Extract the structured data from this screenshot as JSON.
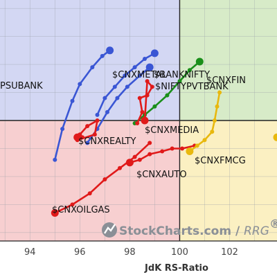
{
  "chart_data": {
    "type": "scatter",
    "xlabel": "JdK RS-Ratio",
    "ylabel": "",
    "xlim": [
      92.8,
      103.9
    ],
    "ylim": [
      95.7,
      104.3
    ],
    "x_ticks": [
      94,
      96,
      98,
      100,
      102
    ],
    "center": [
      100,
      100
    ],
    "grid": true,
    "quadrants": {
      "leading": "#d7ebc8",
      "weakening": "#fbf0c2",
      "lagging": "#f7cfd0",
      "improving": "#d3d7f3"
    },
    "watermark": {
      "brand": "StockCharts.com",
      "separator": " / ",
      "product": "RRG",
      "mark": "®"
    },
    "series": [
      {
        "name": "$CNXMETAL",
        "color": "#3a56d4",
        "points": [
          [
            95.0,
            98.6
          ],
          [
            95.3,
            99.7
          ],
          [
            95.7,
            100.7
          ],
          [
            96.0,
            101.3
          ],
          [
            96.5,
            101.9
          ],
          [
            96.9,
            102.3
          ],
          [
            97.2,
            102.5
          ]
        ]
      },
      {
        "name": "$BANKNIFTY",
        "color": "#3a56d4",
        "points": [
          [
            96.7,
            100.2
          ],
          [
            97.0,
            100.8
          ],
          [
            97.4,
            101.2
          ],
          [
            97.8,
            101.6
          ],
          [
            98.2,
            101.9
          ],
          [
            98.6,
            102.2
          ],
          [
            99.0,
            102.4
          ]
        ]
      },
      {
        "name": "$NIFTYPVTBANK",
        "color": "#3a56d4",
        "points": [
          [
            96.3,
            99.2
          ],
          [
            96.7,
            99.7
          ],
          [
            97.1,
            100.3
          ],
          [
            97.5,
            100.8
          ],
          [
            97.9,
            101.2
          ],
          [
            98.4,
            101.6
          ],
          [
            98.8,
            101.9
          ]
        ]
      },
      {
        "name": "$CNXFIN",
        "color": "#1a8f1a",
        "points": [
          [
            98.2,
            99.9
          ],
          [
            98.6,
            100.2
          ],
          [
            99.0,
            100.5
          ],
          [
            99.5,
            100.9
          ],
          [
            100.0,
            101.4
          ],
          [
            100.4,
            101.8
          ],
          [
            100.8,
            102.1
          ]
        ]
      },
      {
        "name": "$CNXMEDIA",
        "color": "#e01a1a",
        "points": [
          [
            98.3,
            99.9
          ],
          [
            98.5,
            100.3
          ],
          [
            98.4,
            100.8
          ],
          [
            98.7,
            100.9
          ],
          [
            98.9,
            101.2
          ],
          [
            98.7,
            101.4
          ],
          [
            98.6,
            100.0
          ]
        ]
      },
      {
        "name": "$CNXREALTY",
        "color": "#e01a1a",
        "points": [
          [
            95.9,
            99.3
          ],
          [
            96.6,
            99.5
          ],
          [
            96.7,
            100.0
          ],
          [
            96.3,
            99.8
          ],
          [
            96.0,
            99.5
          ],
          [
            96.1,
            99.4
          ],
          [
            95.9,
            99.4
          ]
        ]
      },
      {
        "name": "$CNXAUTO",
        "color": "#e01a1a",
        "points": [
          [
            100.6,
            99.1
          ],
          [
            100.1,
            99.0
          ],
          [
            99.7,
            99.0
          ],
          [
            99.3,
            98.9
          ],
          [
            98.8,
            98.8
          ],
          [
            98.4,
            98.6
          ],
          [
            98.0,
            98.5
          ]
        ]
      },
      {
        "name": "$CNXOILGAS",
        "color": "#e01a1a",
        "points": [
          [
            98.8,
            99.2
          ],
          [
            98.2,
            98.7
          ],
          [
            97.6,
            98.3
          ],
          [
            97.0,
            97.9
          ],
          [
            96.4,
            97.4
          ],
          [
            95.7,
            97.0
          ],
          [
            95.0,
            96.7
          ]
        ]
      },
      {
        "name": "$CNXFMCG",
        "color": "#e8b80e",
        "points": [
          [
            101.6,
            101.0
          ],
          [
            101.5,
            100.5
          ],
          [
            101.4,
            100.0
          ],
          [
            101.3,
            99.6
          ],
          [
            101.0,
            99.3
          ],
          [
            100.7,
            99.1
          ],
          [
            100.4,
            98.9
          ]
        ]
      },
      {
        "name": "$PSUBANK",
        "color": "#e8b80e",
        "points": [
          [
            103.9,
            99.4
          ]
        ]
      }
    ]
  },
  "labels": {
    "metal": "$CNXMETAL",
    "banknifty": "$BANKNIFTY",
    "pvtbank": "$NIFTYPVTBANK",
    "fin": "$CNXFIN",
    "media": "$CNXMEDIA",
    "realty": "$CNXREALTY",
    "auto": "$CNXAUTO",
    "oilgas": "$CNXOILGAS",
    "fmcg": "$CNXFMCG",
    "psubank": "PSUBANK"
  }
}
